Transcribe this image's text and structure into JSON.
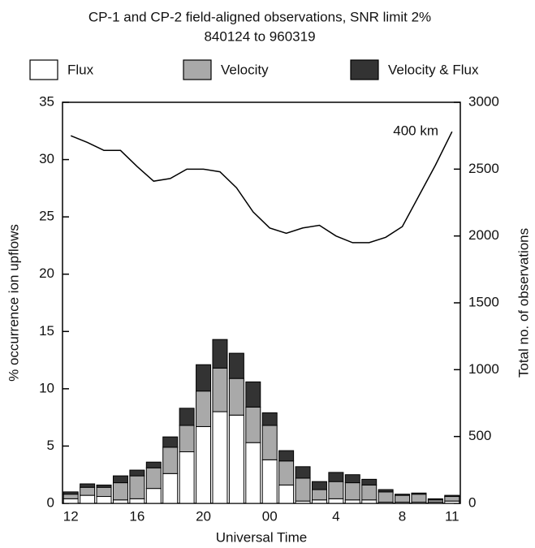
{
  "chart_data": {
    "type": "bar",
    "stacked": true,
    "title": "CP-1 and CP-2 field-aligned observations, SNR limit 2%",
    "subtitle": "840124 to 960319",
    "x_label": "Universal Time",
    "y_label": "% occurrence ion upflows",
    "y2_label": "Total no. of observations",
    "categories": [
      "12",
      null,
      null,
      null,
      "16",
      null,
      null,
      null,
      "20",
      null,
      null,
      null,
      "00",
      null,
      null,
      null,
      "4",
      null,
      null,
      null,
      "8",
      null,
      null,
      "11"
    ],
    "series": [
      {
        "name": "Flux",
        "color": "#ffffff",
        "values": [
          0.4,
          0.7,
          0.6,
          0.3,
          0.4,
          1.3,
          2.6,
          4.5,
          6.7,
          8.0,
          7.7,
          5.3,
          3.8,
          1.6,
          0.2,
          0.3,
          0.4,
          0.3,
          0.3,
          0.1,
          0.1,
          0.1,
          0.1,
          0.2
        ]
      },
      {
        "name": "Velocity",
        "color": "#a9a9a9",
        "values": [
          0.4,
          0.7,
          0.8,
          1.5,
          2.0,
          1.8,
          2.3,
          2.3,
          3.1,
          3.8,
          3.2,
          3.1,
          3.0,
          2.1,
          2.0,
          0.9,
          1.5,
          1.5,
          1.3,
          0.9,
          0.6,
          0.7,
          0.2,
          0.4
        ]
      },
      {
        "name": "Velocity & Flux",
        "color": "#333333",
        "values": [
          0.2,
          0.3,
          0.2,
          0.6,
          0.5,
          0.5,
          0.9,
          1.5,
          2.3,
          2.5,
          2.2,
          2.2,
          1.1,
          0.9,
          1.0,
          0.7,
          0.8,
          0.7,
          0.5,
          0.2,
          0.1,
          0.1,
          0.1,
          0.1
        ]
      },
      {
        "name": "400 km",
        "type": "line",
        "axis": "y2",
        "color": "#000000",
        "values": [
          2750,
          2700,
          2640,
          2640,
          2520,
          2410,
          2430,
          2500,
          2500,
          2480,
          2360,
          2180,
          2060,
          2020,
          2060,
          2080,
          2000,
          1950,
          1950,
          1990,
          2070,
          2300,
          2530,
          2780
        ]
      }
    ],
    "ylim": [
      0,
      35
    ],
    "yticks": [
      0,
      5,
      10,
      15,
      20,
      25,
      30,
      35
    ],
    "y2lim": [
      0,
      3000
    ],
    "y2ticks": [
      0,
      500,
      1000,
      1500,
      2000,
      2500,
      3000
    ]
  }
}
